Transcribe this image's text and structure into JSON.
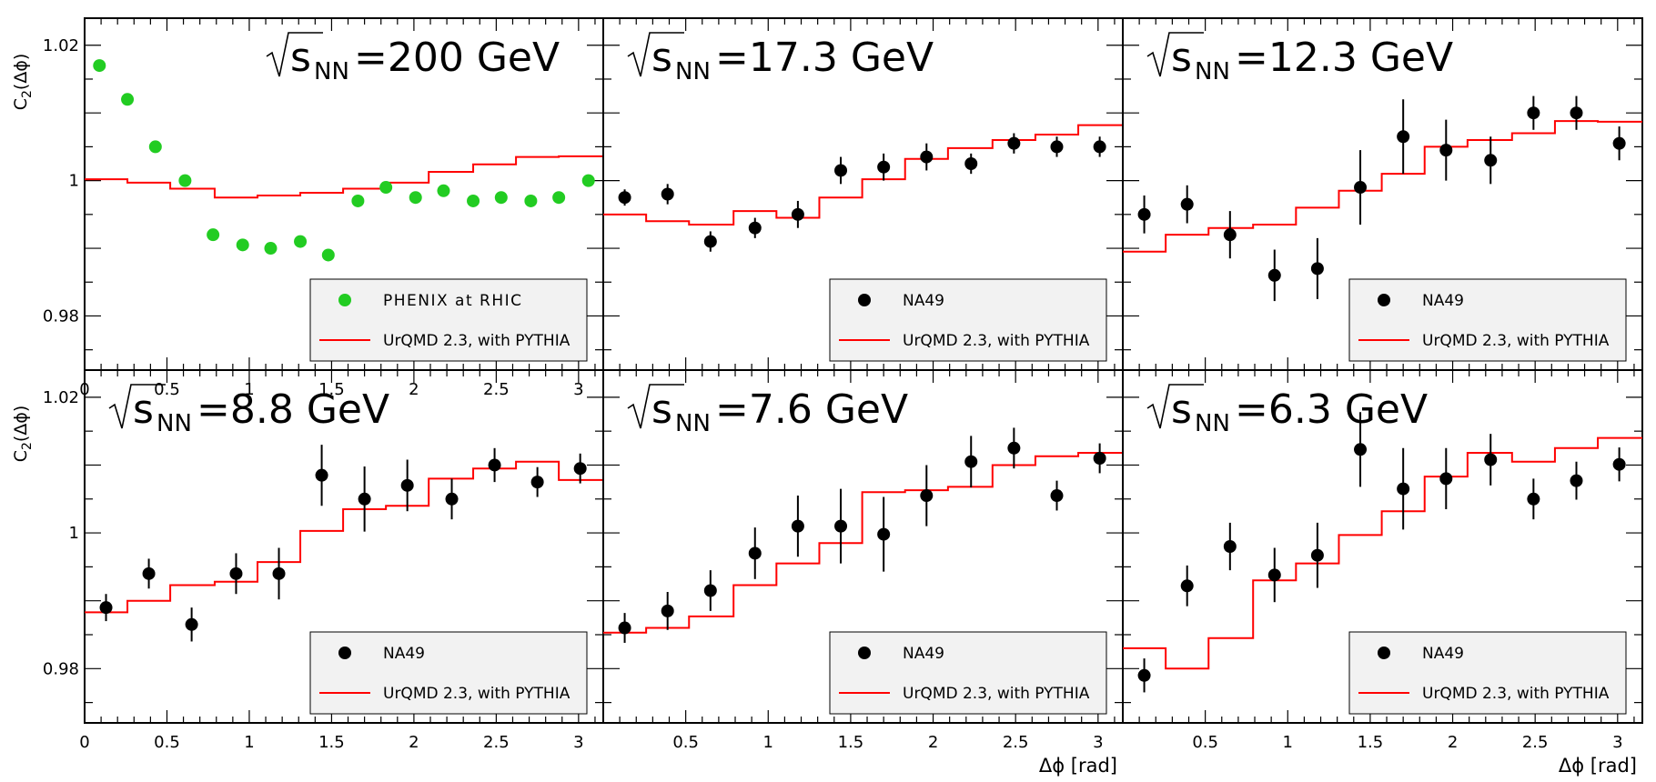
{
  "chart_data": [
    {
      "type": "scatter",
      "energy_label": "=200 GeV",
      "sqrt_symbol": "√",
      "s_label": "s",
      "sub_label": "NN",
      "ylabel": "C",
      "ylabel_sub": "2",
      "ylabel_suffix": "(Δϕ)",
      "xlabel": "",
      "xlim": [
        0,
        3.15
      ],
      "ylim": [
        0.972,
        1.024
      ],
      "legend": {
        "position": "bottom-right",
        "points_label": "PHENIX at RHIC",
        "line_label": "UrQMD 2.3, with PYTHIA"
      },
      "points_color": "#22cc22",
      "line_color": "#ff0000",
      "points": {
        "x": [
          0.09,
          0.26,
          0.43,
          0.61,
          0.78,
          0.96,
          1.13,
          1.31,
          1.48,
          1.66,
          1.83,
          2.01,
          2.18,
          2.36,
          2.53,
          2.71,
          2.88,
          3.06
        ],
        "y": [
          1.017,
          1.012,
          1.005,
          1.0,
          0.992,
          0.9905,
          0.99,
          0.991,
          0.989,
          0.997,
          0.999,
          0.9975,
          0.9985,
          0.997,
          0.9975,
          0.997,
          0.9975,
          1.0
        ]
      },
      "model": {
        "edges": [
          0,
          0.26,
          0.52,
          0.79,
          1.05,
          1.31,
          1.57,
          1.83,
          2.09,
          2.36,
          2.62,
          2.88,
          3.15
        ],
        "values": [
          1.0002,
          0.9997,
          0.9988,
          0.9975,
          0.9978,
          0.9982,
          0.9988,
          0.9997,
          1.0013,
          1.0024,
          1.0035,
          1.0036
        ]
      },
      "yticks": [
        "0.98",
        "1",
        "1.02"
      ],
      "xticks": [
        "0",
        "0.5",
        "1",
        "1.5",
        "2",
        "2.5",
        "3"
      ]
    },
    {
      "type": "scatter",
      "energy_label": "=17.3 GeV",
      "sqrt_symbol": "√",
      "s_label": "s",
      "sub_label": "NN",
      "xlim": [
        0,
        3.15
      ],
      "ylim": [
        0.972,
        1.024
      ],
      "legend": {
        "position": "bottom-right",
        "points_label": "NA49",
        "line_label": "UrQMD 2.3, with PYTHIA"
      },
      "points_color": "#000000",
      "line_color": "#ff0000",
      "points": {
        "x": [
          0.13,
          0.39,
          0.65,
          0.92,
          1.18,
          1.44,
          1.7,
          1.96,
          2.23,
          2.49,
          2.75,
          3.01
        ],
        "y": [
          0.9975,
          0.998,
          0.991,
          0.993,
          0.995,
          1.0015,
          1.002,
          1.0035,
          1.0025,
          1.0055,
          1.005,
          1.005
        ],
        "err": [
          0.0012,
          0.0015,
          0.0015,
          0.0015,
          0.002,
          0.002,
          0.002,
          0.002,
          0.0015,
          0.0015,
          0.0015,
          0.0015
        ]
      },
      "model": {
        "edges": [
          0,
          0.26,
          0.52,
          0.79,
          1.05,
          1.31,
          1.57,
          1.83,
          2.09,
          2.36,
          2.62,
          2.88,
          3.15
        ],
        "values": [
          0.995,
          0.994,
          0.9935,
          0.9955,
          0.9945,
          0.9975,
          1.0002,
          1.0032,
          1.0048,
          1.006,
          1.0068,
          1.0082
        ]
      },
      "yticks": [],
      "xticks": []
    },
    {
      "type": "scatter",
      "energy_label": "=12.3 GeV",
      "sqrt_symbol": "√",
      "s_label": "s",
      "sub_label": "NN",
      "xlim": [
        0,
        3.15
      ],
      "ylim": [
        0.972,
        1.024
      ],
      "legend": {
        "position": "bottom-right",
        "points_label": "NA49",
        "line_label": "UrQMD 2.3, with PYTHIA"
      },
      "points_color": "#000000",
      "line_color": "#ff0000",
      "points": {
        "x": [
          0.13,
          0.39,
          0.65,
          0.92,
          1.18,
          1.44,
          1.7,
          1.96,
          2.23,
          2.49,
          2.75,
          3.01
        ],
        "y": [
          0.995,
          0.9965,
          0.992,
          0.986,
          0.987,
          0.999,
          1.0065,
          1.0045,
          1.003,
          1.01,
          1.01,
          1.0055
        ],
        "err": [
          0.0028,
          0.0028,
          0.0035,
          0.0038,
          0.0045,
          0.0055,
          0.0055,
          0.0045,
          0.0035,
          0.0025,
          0.0025,
          0.0025
        ]
      },
      "model": {
        "edges": [
          0,
          0.26,
          0.52,
          0.79,
          1.05,
          1.31,
          1.57,
          1.83,
          2.09,
          2.36,
          2.62,
          2.88,
          3.15
        ],
        "values": [
          0.9895,
          0.992,
          0.993,
          0.9935,
          0.996,
          0.9985,
          1.001,
          1.005,
          1.006,
          1.007,
          1.0088,
          1.0087
        ]
      },
      "yticks": [],
      "xticks": []
    },
    {
      "type": "scatter",
      "energy_label": "=8.8 GeV",
      "sqrt_symbol": "√",
      "s_label": "s",
      "sub_label": "NN",
      "ylabel": "C",
      "ylabel_sub": "2",
      "ylabel_suffix": "(Δϕ)",
      "xlabel": "",
      "xlim": [
        0,
        3.15
      ],
      "ylim": [
        0.972,
        1.024
      ],
      "legend": {
        "position": "bottom-right",
        "points_label": "NA49",
        "line_label": "UrQMD 2.3, with PYTHIA"
      },
      "points_color": "#000000",
      "line_color": "#ff0000",
      "points": {
        "x": [
          0.13,
          0.39,
          0.65,
          0.92,
          1.18,
          1.44,
          1.7,
          1.96,
          2.23,
          2.49,
          2.75,
          3.01
        ],
        "y": [
          0.989,
          0.994,
          0.9865,
          0.994,
          0.994,
          1.0085,
          1.005,
          1.007,
          1.005,
          1.01,
          1.0075,
          1.0095
        ],
        "err": [
          0.002,
          0.0022,
          0.0025,
          0.003,
          0.0038,
          0.0045,
          0.0048,
          0.0038,
          0.003,
          0.0025,
          0.0022,
          0.0022
        ]
      },
      "model": {
        "edges": [
          0,
          0.26,
          0.52,
          0.79,
          1.05,
          1.31,
          1.57,
          1.83,
          2.09,
          2.36,
          2.62,
          2.88,
          3.15
        ],
        "values": [
          0.9883,
          0.99,
          0.9923,
          0.9928,
          0.9957,
          1.0003,
          1.0035,
          1.004,
          1.008,
          1.0095,
          1.0105,
          1.0078
        ]
      },
      "yticks": [
        "0.98",
        "1",
        "1.02"
      ],
      "xticks": [
        "0",
        "0.5",
        "1",
        "1.5",
        "2",
        "2.5",
        "3"
      ]
    },
    {
      "type": "scatter",
      "energy_label": "=7.6 GeV",
      "sqrt_symbol": "√",
      "s_label": "s",
      "sub_label": "NN",
      "xlabel": "Δϕ [rad]",
      "xlim": [
        0,
        3.15
      ],
      "ylim": [
        0.972,
        1.024
      ],
      "legend": {
        "position": "bottom-right",
        "points_label": "NA49",
        "line_label": "UrQMD 2.3, with PYTHIA"
      },
      "points_color": "#000000",
      "line_color": "#ff0000",
      "points": {
        "x": [
          0.13,
          0.39,
          0.65,
          0.92,
          1.18,
          1.44,
          1.7,
          1.96,
          2.23,
          2.49,
          2.75,
          3.01
        ],
        "y": [
          0.986,
          0.9885,
          0.9915,
          0.997,
          1.001,
          1.001,
          0.9998,
          1.0055,
          1.0105,
          1.0125,
          1.0055,
          1.011
        ],
        "err": [
          0.0022,
          0.0028,
          0.003,
          0.0038,
          0.0045,
          0.0055,
          0.0055,
          0.0045,
          0.0038,
          0.003,
          0.0022,
          0.0022
        ]
      },
      "model": {
        "edges": [
          0,
          0.26,
          0.52,
          0.79,
          1.05,
          1.31,
          1.57,
          1.83,
          2.09,
          2.36,
          2.62,
          2.88,
          3.15
        ],
        "values": [
          0.9853,
          0.986,
          0.9877,
          0.9923,
          0.9955,
          0.9985,
          1.006,
          1.0063,
          1.0068,
          1.01,
          1.0113,
          1.0118
        ]
      },
      "yticks": [],
      "xticks": [
        "0.5",
        "1",
        "1.5",
        "2",
        "2.5",
        "3"
      ]
    },
    {
      "type": "scatter",
      "energy_label": "=6.3 GeV",
      "sqrt_symbol": "√",
      "s_label": "s",
      "sub_label": "NN",
      "xlabel": "Δϕ [rad]",
      "xlim": [
        0,
        3.15
      ],
      "ylim": [
        0.972,
        1.024
      ],
      "legend": {
        "position": "bottom-right",
        "points_label": "NA49",
        "line_label": "UrQMD 2.3, with PYTHIA"
      },
      "points_color": "#000000",
      "line_color": "#ff0000",
      "points": {
        "x": [
          0.13,
          0.39,
          0.65,
          0.92,
          1.18,
          1.44,
          1.7,
          1.96,
          2.23,
          2.49,
          2.75,
          3.01
        ],
        "y": [
          0.979,
          0.9922,
          0.998,
          0.9938,
          0.9967,
          1.0123,
          1.0065,
          1.008,
          1.0108,
          1.005,
          1.0077,
          1.0101
        ],
        "err": [
          0.0025,
          0.003,
          0.0035,
          0.004,
          0.0048,
          0.0055,
          0.006,
          0.0045,
          0.0038,
          0.003,
          0.0028,
          0.0025
        ]
      },
      "model": {
        "edges": [
          0,
          0.26,
          0.52,
          0.79,
          1.05,
          1.31,
          1.57,
          1.83,
          2.09,
          2.36,
          2.62,
          2.88,
          3.15
        ],
        "values": [
          0.983,
          0.98,
          0.9845,
          0.993,
          0.9955,
          0.9997,
          1.0032,
          1.0083,
          1.0118,
          1.0105,
          1.0125,
          1.014
        ]
      },
      "yticks": [],
      "xticks": [
        "0.5",
        "1",
        "1.5",
        "2",
        "2.5",
        "3"
      ]
    }
  ]
}
